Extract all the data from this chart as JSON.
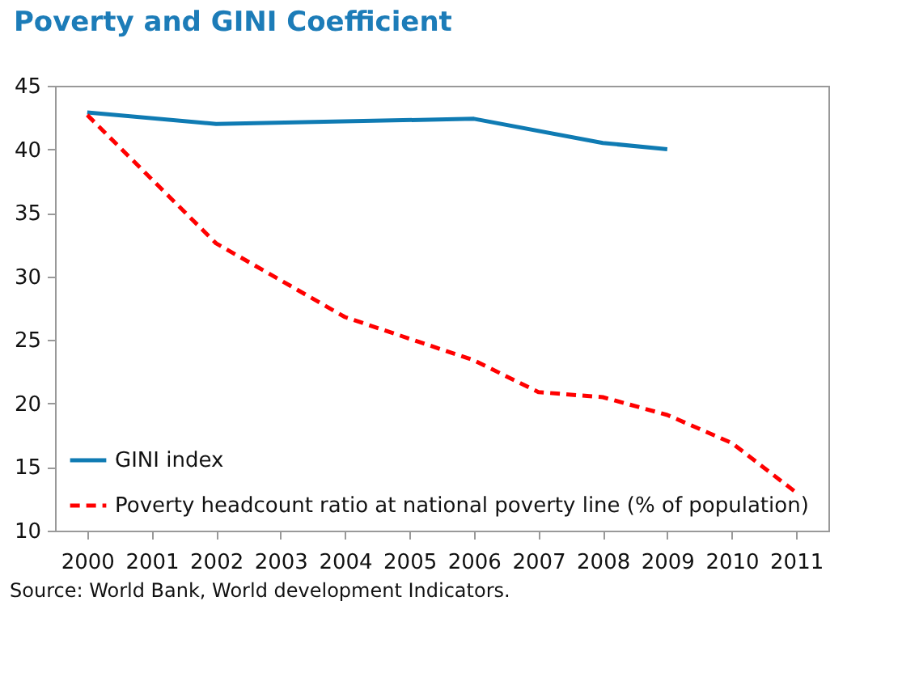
{
  "chart_data": {
    "type": "line",
    "title": "Poverty and GINI Coefficient",
    "categories": [
      "2000",
      "2001",
      "2002",
      "2003",
      "2004",
      "2005",
      "2006",
      "2007",
      "2008",
      "2009",
      "2010",
      "2011"
    ],
    "series": [
      {
        "name": "GINI index",
        "color": "#0f7bb3",
        "line_style": "solid",
        "values": [
          42.9,
          null,
          42.0,
          null,
          null,
          null,
          42.4,
          null,
          40.5,
          40.0,
          null,
          null
        ]
      },
      {
        "name": "Poverty headcount ratio at national poverty line (% of population)",
        "color": "#ff0000",
        "line_style": "dashed",
        "values": [
          42.7,
          null,
          32.6,
          null,
          26.8,
          null,
          23.4,
          20.9,
          20.5,
          19.1,
          16.9,
          13.0
        ]
      }
    ],
    "ylim": [
      10,
      45
    ],
    "yticks": [
      10,
      15,
      20,
      25,
      30,
      35,
      40,
      45
    ],
    "grid": false,
    "legend": "bottom left",
    "annotations": [
      "Source: World Bank, World development Indicators."
    ]
  }
}
